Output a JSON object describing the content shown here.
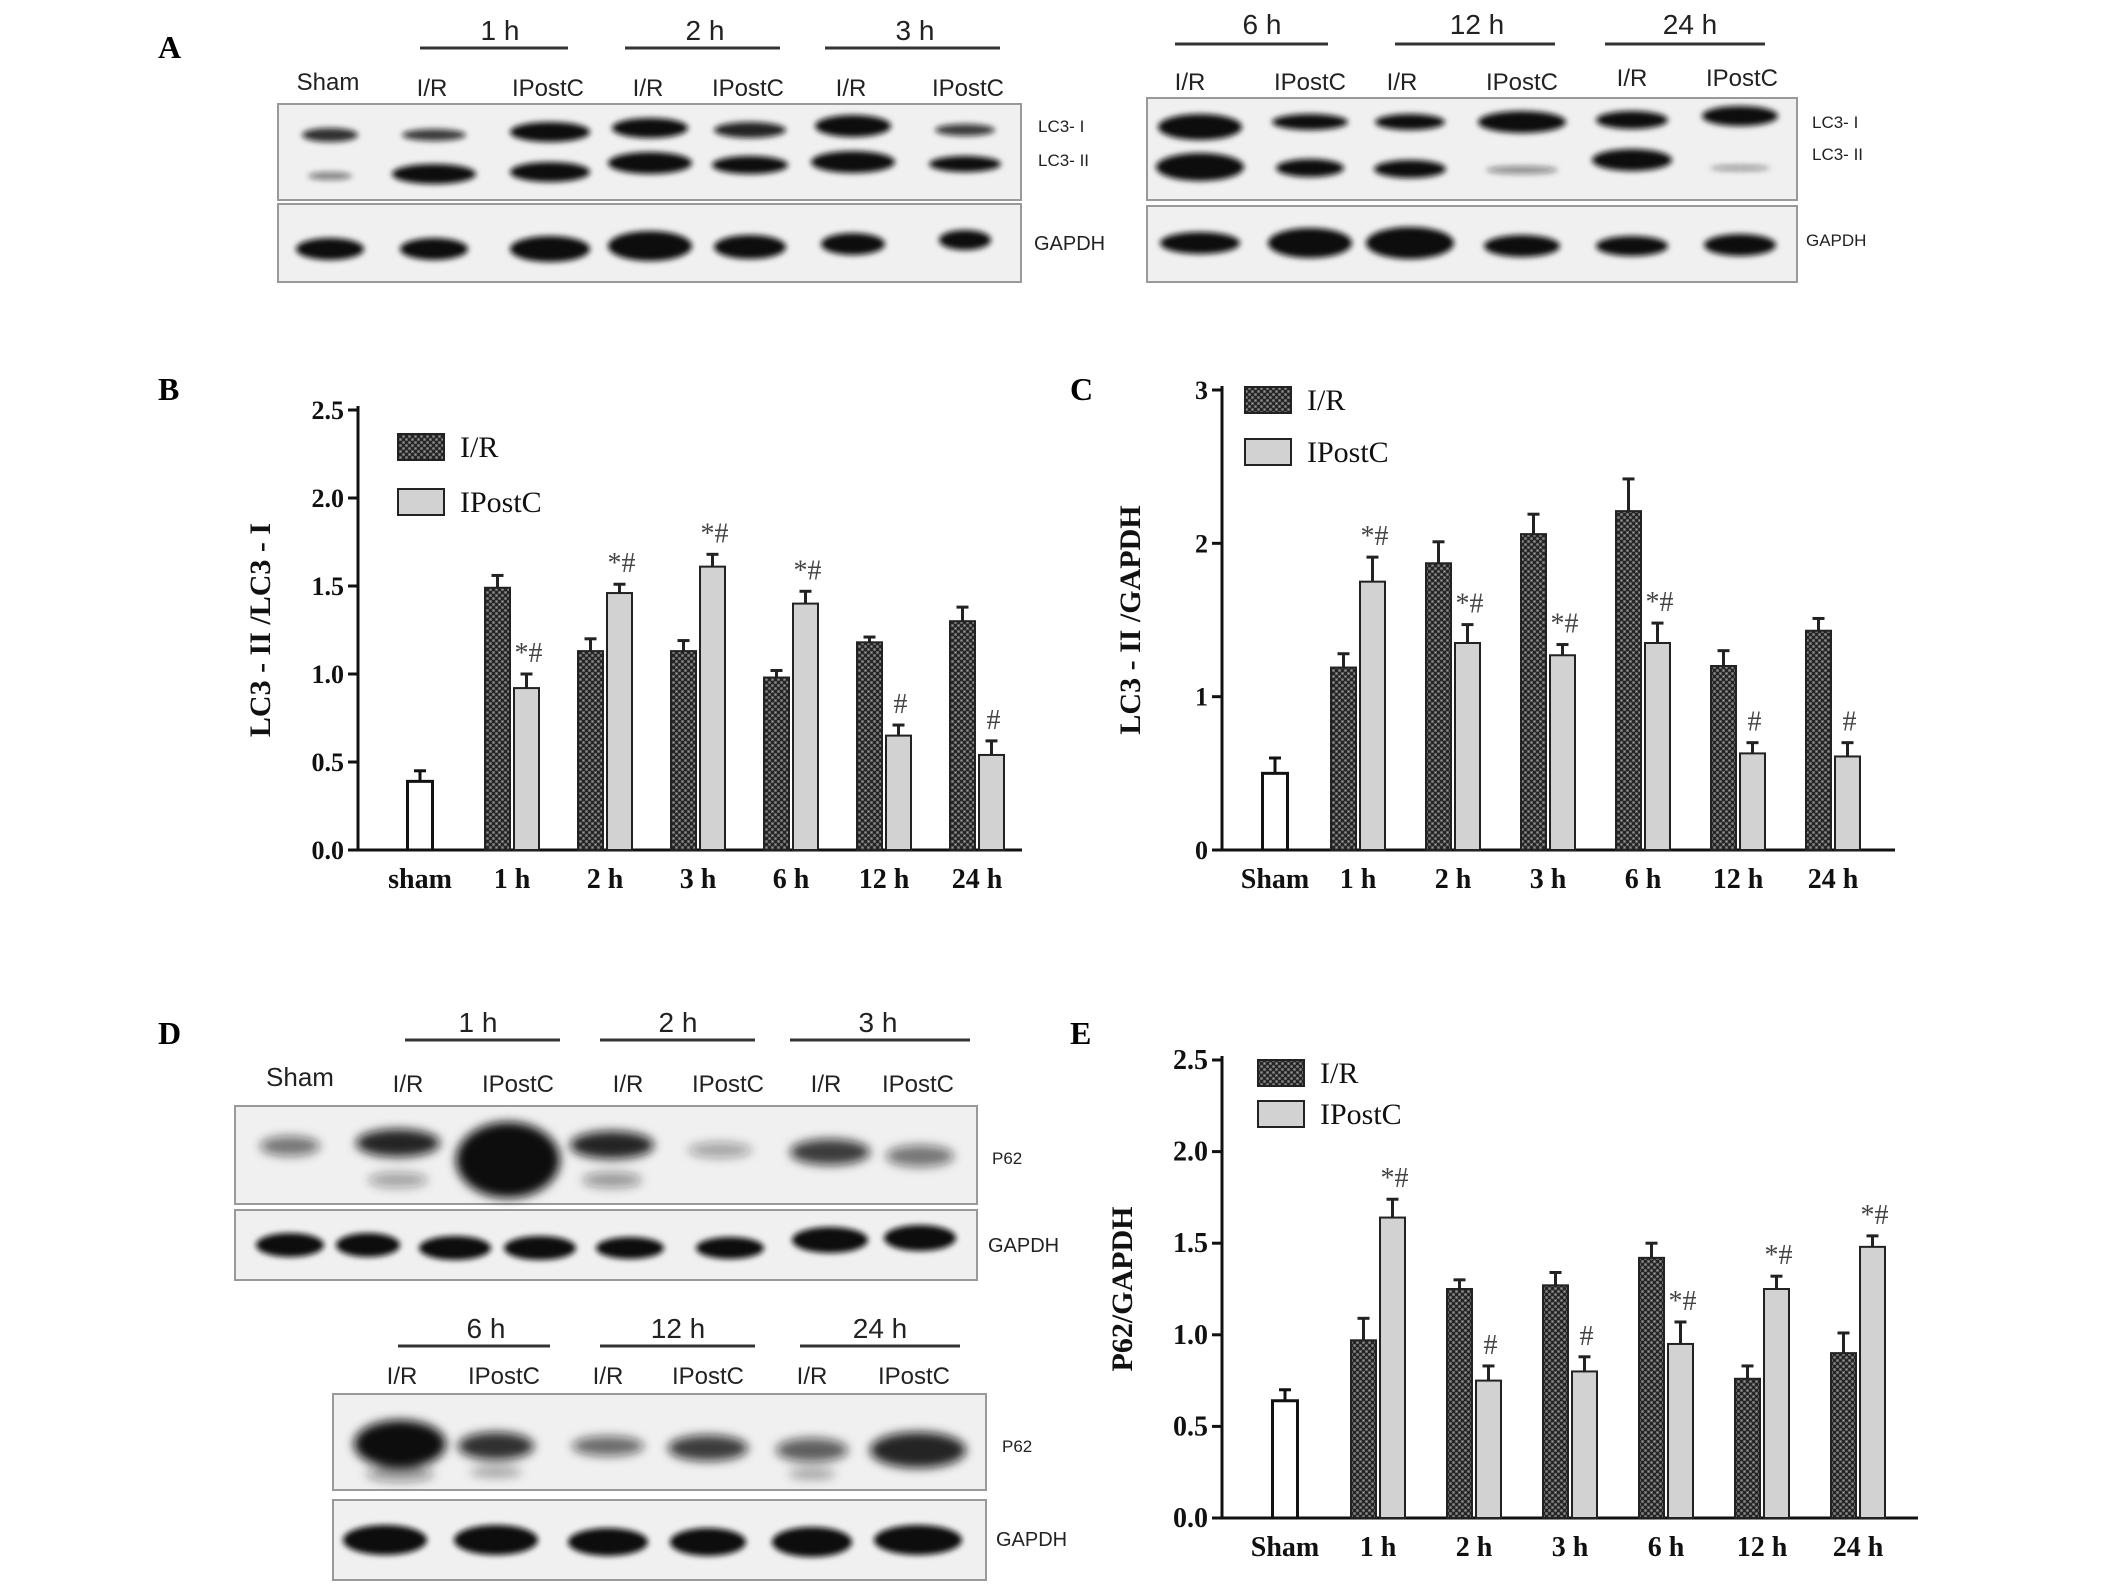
{
  "panels": {
    "A": {
      "label": "A",
      "blot_left": {
        "time_labels": [
          "1 h",
          "2 h",
          "3 h"
        ],
        "lane_labels": [
          "Sham",
          "I/R",
          "IPostC",
          "I/R",
          "IPostC",
          "I/R",
          "IPostC"
        ],
        "band_labels": [
          "LC3- I",
          "LC3- II",
          "GAPDH"
        ]
      },
      "blot_right": {
        "time_labels": [
          "6 h",
          "12 h",
          "24 h"
        ],
        "lane_labels": [
          "I/R",
          "IPostC",
          "I/R",
          "IPostC",
          "I/R",
          "IPostC"
        ],
        "band_labels": [
          "LC3- I",
          "LC3- II",
          "GAPDH"
        ]
      }
    },
    "D": {
      "label": "D",
      "blot_top": {
        "time_labels": [
          "1 h",
          "2 h",
          "3 h"
        ],
        "lane_labels": [
          "Sham",
          "I/R",
          "IPostC",
          "I/R",
          "IPostC",
          "I/R",
          "IPostC"
        ],
        "band_labels": [
          "P62",
          "GAPDH"
        ]
      },
      "blot_bottom": {
        "time_labels": [
          "6 h",
          "12 h",
          "24 h"
        ],
        "lane_labels": [
          "I/R",
          "IPostC",
          "I/R",
          "IPostC",
          "I/R",
          "IPostC"
        ],
        "band_labels": [
          "P62",
          "GAPDH"
        ]
      }
    }
  },
  "chart_data": [
    {
      "panel": "B",
      "type": "bar",
      "ylabel": "LC3 - II /LC3 - I",
      "ylim": [
        0,
        2.5
      ],
      "yticks": [
        "0.0",
        "0.5",
        "1.0",
        "1.5",
        "2.0",
        "2.5"
      ],
      "categories": [
        "sham",
        "1 h",
        "2 h",
        "3 h",
        "6 h",
        "12 h",
        "24 h"
      ],
      "sham": {
        "value": 0.39,
        "error": 0.06
      },
      "series": [
        {
          "name": "I/R",
          "values": [
            null,
            1.49,
            1.13,
            1.13,
            0.98,
            1.18,
            1.3
          ],
          "errors": [
            null,
            0.07,
            0.07,
            0.06,
            0.04,
            0.03,
            0.08
          ]
        },
        {
          "name": "IPostC",
          "values": [
            null,
            0.92,
            1.46,
            1.61,
            1.4,
            0.65,
            0.54
          ],
          "errors": [
            null,
            0.08,
            0.05,
            0.07,
            0.07,
            0.06,
            0.08
          ]
        }
      ],
      "annotations": [
        "",
        "*#",
        "*#",
        "*#",
        "*#",
        "#",
        "#"
      ],
      "legend": "top-left"
    },
    {
      "panel": "C",
      "type": "bar",
      "ylabel": "LC3 - II /GAPDH",
      "ylim": [
        0,
        3
      ],
      "yticks": [
        "0",
        "1",
        "2",
        "3"
      ],
      "categories": [
        "Sham",
        "1 h",
        "2 h",
        "3 h",
        "6 h",
        "12 h",
        "24 h"
      ],
      "sham": {
        "value": 0.5,
        "error": 0.1
      },
      "series": [
        {
          "name": "I/R",
          "values": [
            null,
            1.19,
            1.87,
            2.06,
            2.21,
            1.2,
            1.43
          ],
          "errors": [
            null,
            0.09,
            0.14,
            0.13,
            0.21,
            0.1,
            0.08
          ]
        },
        {
          "name": "IPostC",
          "values": [
            null,
            1.75,
            1.35,
            1.27,
            1.35,
            0.63,
            0.61
          ],
          "errors": [
            null,
            0.16,
            0.12,
            0.07,
            0.13,
            0.07,
            0.09
          ]
        }
      ],
      "annotations": [
        "",
        "*#",
        "*#",
        "*#",
        "*#",
        "#",
        "#"
      ],
      "legend": "top-left"
    },
    {
      "panel": "E",
      "type": "bar",
      "ylabel": "P62/GAPDH",
      "ylim": [
        0,
        2.5
      ],
      "yticks": [
        "0.0",
        "0.5",
        "1.0",
        "1.5",
        "2.0",
        "2.5"
      ],
      "categories": [
        "Sham",
        "1 h",
        "2 h",
        "3 h",
        "6 h",
        "12 h",
        "24 h"
      ],
      "sham": {
        "value": 0.64,
        "error": 0.06
      },
      "series": [
        {
          "name": "I/R",
          "values": [
            null,
            0.97,
            1.25,
            1.27,
            1.42,
            0.76,
            0.9
          ],
          "errors": [
            null,
            0.12,
            0.05,
            0.07,
            0.08,
            0.07,
            0.11
          ]
        },
        {
          "name": "IPostC",
          "values": [
            null,
            1.64,
            0.75,
            0.8,
            0.95,
            1.25,
            1.48
          ],
          "errors": [
            null,
            0.1,
            0.08,
            0.08,
            0.12,
            0.07,
            0.06
          ]
        }
      ],
      "annotations": [
        "",
        "*#",
        "#",
        "#",
        "*#",
        "*#",
        "*#"
      ],
      "legend": "top-left"
    }
  ]
}
